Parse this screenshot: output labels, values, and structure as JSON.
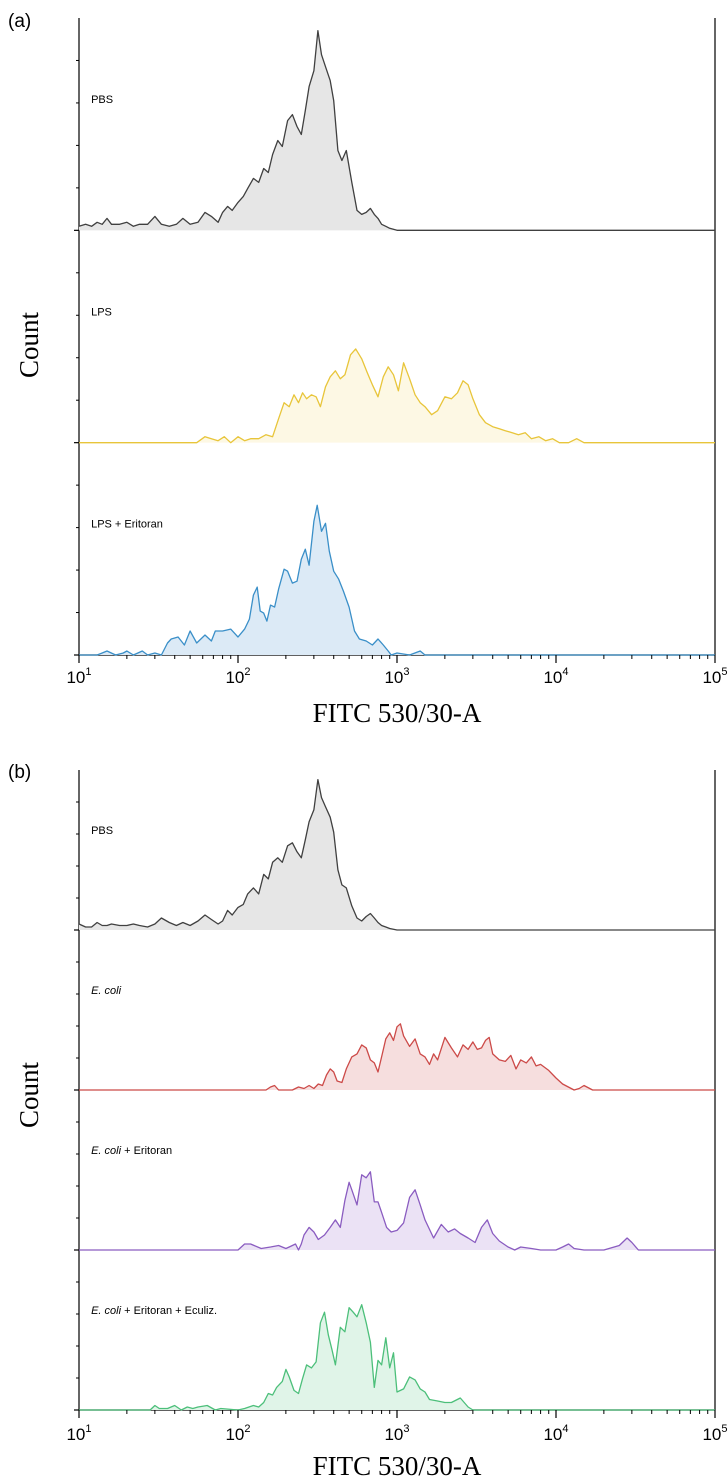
{
  "chart_data": [
    {
      "type": "area",
      "panel_label": "(a)",
      "xlabel": "FITC 530/30-A",
      "ylabel": "Count",
      "x_scale": "log",
      "xlim": [
        10,
        100000
      ],
      "x_ticks": [
        {
          "value": 10,
          "base": "10",
          "exp": "1"
        },
        {
          "value": 100,
          "base": "10",
          "exp": "2"
        },
        {
          "value": 1000,
          "base": "10",
          "exp": "3"
        },
        {
          "value": 10000,
          "base": "10",
          "exp": "4"
        },
        {
          "value": 100000,
          "base": "10",
          "exp": "5"
        }
      ],
      "grid": false,
      "series": [
        {
          "name": "PBS",
          "color": "#404040",
          "fill": "#e6e6e6",
          "x": [
            10,
            11,
            12,
            13,
            14,
            15,
            16,
            18,
            20,
            22,
            24,
            27,
            30,
            33,
            37,
            41,
            45,
            50,
            56,
            62,
            68,
            75,
            80,
            86,
            92,
            100,
            108,
            115,
            125,
            135,
            145,
            155,
            165,
            178,
            190,
            205,
            220,
            235,
            250,
            265,
            280,
            300,
            318,
            335,
            355,
            380,
            400,
            425,
            450,
            480,
            520,
            560,
            600,
            640,
            680,
            720,
            760,
            800,
            850,
            900,
            1000,
            2000,
            5000,
            10000,
            20000,
            50000,
            100000
          ],
          "y": [
            2,
            3,
            2,
            4,
            3,
            6,
            3,
            3,
            4,
            2,
            3,
            3,
            7,
            3,
            2,
            3,
            6,
            3,
            4,
            9,
            7,
            4,
            9,
            12,
            10,
            14,
            17,
            21,
            26,
            24,
            31,
            29,
            38,
            45,
            42,
            55,
            58,
            52,
            48,
            60,
            72,
            80,
            100,
            88,
            82,
            75,
            65,
            40,
            35,
            40,
            24,
            10,
            8,
            9,
            11,
            8,
            6,
            3,
            2,
            1,
            0,
            0,
            0,
            0,
            0,
            0,
            0
          ],
          "ymax": 100,
          "label_x": 0.019,
          "label_y": 0.6
        },
        {
          "name": "LPS",
          "color": "#e8c53a",
          "fill": "#fdf8e4",
          "x": [
            10,
            20,
            40,
            55,
            62,
            68,
            75,
            82,
            90,
            100,
            110,
            120,
            135,
            150,
            165,
            180,
            195,
            210,
            225,
            240,
            255,
            270,
            290,
            310,
            330,
            355,
            380,
            410,
            440,
            470,
            510,
            550,
            600,
            650,
            700,
            760,
            820,
            880,
            950,
            1020,
            1100,
            1200,
            1300,
            1400,
            1500,
            1650,
            1800,
            2000,
            2200,
            2400,
            2600,
            2800,
            3000,
            3300,
            3600,
            4000,
            4400,
            4800,
            5300,
            5800,
            6400,
            7000,
            7800,
            8600,
            9500,
            10500,
            12000,
            13500,
            15000,
            20000,
            50000,
            100000
          ],
          "y": [
            0,
            0,
            0,
            0,
            3,
            2,
            1,
            3,
            0,
            3,
            1,
            2,
            2,
            4,
            3,
            12,
            20,
            18,
            24,
            20,
            25,
            22,
            24,
            23,
            18,
            28,
            33,
            36,
            32,
            34,
            44,
            47,
            42,
            35,
            29,
            23,
            33,
            38,
            34,
            26,
            40,
            32,
            24,
            20,
            18,
            14,
            16,
            23,
            22,
            25,
            31,
            29,
            22,
            14,
            10,
            8,
            7,
            6,
            5,
            4,
            5,
            2,
            3,
            1,
            2,
            0,
            0,
            2,
            0,
            0,
            0,
            0
          ],
          "ymax": 100,
          "label_x": 0.019,
          "label_y": 0.6
        },
        {
          "name": "LPS + Eritoran",
          "color": "#3a8fc8",
          "fill": "#dceaf6",
          "x": [
            10,
            13,
            14,
            15,
            17,
            19,
            20,
            22,
            25,
            27,
            30,
            33,
            36,
            38,
            42,
            46,
            50,
            55,
            62,
            68,
            72,
            80,
            90,
            100,
            110,
            118,
            125,
            132,
            138,
            145,
            152,
            160,
            170,
            180,
            195,
            205,
            220,
            235,
            250,
            265,
            280,
            300,
            315,
            335,
            355,
            375,
            400,
            430,
            460,
            500,
            540,
            580,
            640,
            700,
            760,
            820,
            880,
            920,
            1000,
            1200,
            1400,
            1500,
            1600,
            2000,
            10000,
            100000
          ],
          "y": [
            0,
            0,
            1,
            2,
            0,
            1,
            2,
            0,
            2,
            0,
            1,
            0,
            6,
            8,
            9,
            5,
            12,
            6,
            10,
            7,
            12,
            12,
            13,
            9,
            13,
            18,
            30,
            34,
            22,
            21,
            17,
            25,
            24,
            33,
            43,
            42,
            36,
            37,
            48,
            53,
            45,
            67,
            75,
            62,
            66,
            52,
            42,
            38,
            32,
            24,
            12,
            8,
            7,
            5,
            8,
            5,
            2,
            0,
            1,
            0,
            2,
            0,
            0,
            0,
            0,
            0
          ],
          "ymax": 100,
          "label_x": 0.019,
          "label_y": 0.6
        }
      ]
    },
    {
      "type": "area",
      "panel_label": "(b)",
      "xlabel": "FITC 530/30-A",
      "ylabel": "Count",
      "x_scale": "log",
      "xlim": [
        10,
        100000
      ],
      "x_ticks": [
        {
          "value": 10,
          "base": "10",
          "exp": "1"
        },
        {
          "value": 100,
          "base": "10",
          "exp": "2"
        },
        {
          "value": 1000,
          "base": "10",
          "exp": "3"
        },
        {
          "value": 10000,
          "base": "10",
          "exp": "4"
        },
        {
          "value": 100000,
          "base": "10",
          "exp": "5"
        }
      ],
      "grid": false,
      "series": [
        {
          "name": "PBS",
          "color": "#404040",
          "fill": "#e6e6e6",
          "x": [
            10,
            11,
            12,
            13,
            14,
            15,
            16,
            18,
            20,
            22,
            24,
            27,
            30,
            33,
            37,
            41,
            45,
            50,
            56,
            62,
            68,
            75,
            80,
            86,
            92,
            100,
            108,
            115,
            125,
            135,
            145,
            155,
            165,
            178,
            190,
            205,
            220,
            235,
            250,
            265,
            280,
            300,
            318,
            335,
            355,
            380,
            400,
            425,
            450,
            480,
            520,
            560,
            600,
            640,
            680,
            720,
            760,
            800,
            850,
            900,
            1000,
            2000,
            5000,
            10000,
            20000,
            50000,
            100000
          ],
          "y": [
            4,
            2,
            2,
            5,
            3,
            3,
            4,
            3,
            3,
            4,
            3,
            2,
            4,
            8,
            5,
            3,
            5,
            3,
            6,
            10,
            7,
            4,
            6,
            13,
            10,
            15,
            17,
            24,
            28,
            24,
            37,
            34,
            45,
            48,
            45,
            56,
            58,
            52,
            48,
            60,
            72,
            80,
            100,
            88,
            82,
            75,
            65,
            40,
            30,
            28,
            16,
            8,
            6,
            9,
            11,
            8,
            5,
            3,
            2,
            1,
            0,
            0,
            0,
            0,
            0,
            0,
            0
          ],
          "ymax": 100,
          "label_x": 0.019,
          "label_y": 0.6
        },
        {
          "name": "E. coli",
          "name_parts": [
            "E. coli",
            ""
          ],
          "color": "#cc4a48",
          "fill": "#f6dede",
          "x": [
            10,
            150,
            160,
            170,
            180,
            200,
            220,
            240,
            260,
            280,
            300,
            320,
            340,
            360,
            380,
            400,
            420,
            450,
            480,
            520,
            560,
            600,
            640,
            680,
            720,
            760,
            800,
            850,
            900,
            950,
            1000,
            1050,
            1100,
            1200,
            1300,
            1400,
            1500,
            1600,
            1700,
            1800,
            2000,
            2200,
            2400,
            2600,
            2800,
            3000,
            3200,
            3400,
            3600,
            3800,
            4000,
            4400,
            4800,
            5200,
            5600,
            6000,
            6500,
            7000,
            7500,
            8000,
            9000,
            10000,
            11000,
            13000,
            14000,
            15000,
            17000,
            20000,
            50000,
            100000
          ],
          "y": [
            0,
            0,
            2,
            3,
            0,
            0,
            0,
            2,
            1,
            3,
            1,
            4,
            3,
            10,
            14,
            12,
            6,
            5,
            14,
            22,
            24,
            30,
            28,
            20,
            18,
            12,
            22,
            34,
            38,
            33,
            42,
            44,
            36,
            29,
            34,
            24,
            22,
            17,
            24,
            20,
            35,
            28,
            22,
            30,
            27,
            32,
            27,
            28,
            33,
            35,
            24,
            20,
            19,
            23,
            14,
            20,
            18,
            22,
            16,
            17,
            13,
            8,
            4,
            0,
            1,
            3,
            0,
            0,
            0,
            0
          ],
          "ymax": 100,
          "label_x": 0.019,
          "label_y": 0.6
        },
        {
          "name": "E. coli + Eritoran",
          "name_parts": [
            "E. coli",
            " + Eritoran"
          ],
          "color": "#8a5cc0",
          "fill": "#ebe2f5",
          "x": [
            10,
            100,
            110,
            120,
            140,
            160,
            180,
            200,
            210,
            230,
            240,
            250,
            260,
            280,
            300,
            320,
            350,
            380,
            410,
            440,
            470,
            500,
            520,
            560,
            600,
            640,
            680,
            720,
            760,
            800,
            860,
            920,
            1000,
            1100,
            1200,
            1300,
            1400,
            1500,
            1700,
            1900,
            2100,
            2300,
            2500,
            2800,
            3100,
            3400,
            3700,
            4000,
            4400,
            5000,
            5500,
            6000,
            7000,
            8000,
            10000,
            11000,
            12000,
            13000,
            15000,
            20000,
            25000,
            28000,
            30000,
            33000,
            40000,
            100000
          ],
          "y": [
            0,
            0,
            4,
            4,
            1,
            2,
            3,
            1,
            2,
            4,
            0,
            4,
            10,
            15,
            12,
            7,
            10,
            15,
            20,
            15,
            33,
            45,
            40,
            30,
            50,
            48,
            52,
            32,
            32,
            25,
            15,
            12,
            13,
            18,
            35,
            40,
            30,
            20,
            8,
            17,
            12,
            14,
            11,
            8,
            5,
            15,
            20,
            11,
            6,
            2,
            0,
            2,
            1,
            0,
            0,
            2,
            4,
            1,
            0,
            0,
            3,
            8,
            5,
            0,
            0,
            0
          ],
          "ymax": 100,
          "label_x": 0.019,
          "label_y": 0.6
        },
        {
          "name": "E. coli + Eritoran + Eculiz.",
          "name_parts": [
            "E. coli",
            " + Eritoran + Eculiz."
          ],
          "color": "#4cbf7a",
          "fill": "#e0f4e8",
          "x": [
            10,
            28,
            30,
            32,
            36,
            40,
            44,
            48,
            52,
            56,
            64,
            72,
            78,
            100,
            110,
            125,
            135,
            145,
            155,
            165,
            175,
            190,
            200,
            210,
            225,
            240,
            255,
            270,
            290,
            310,
            330,
            350,
            370,
            390,
            410,
            440,
            470,
            500,
            530,
            560,
            600,
            640,
            680,
            720,
            760,
            800,
            850,
            900,
            950,
            1000,
            1100,
            1200,
            1300,
            1400,
            1500,
            1600,
            1800,
            2000,
            2200,
            2500,
            2800,
            3000,
            3500,
            100000
          ],
          "y": [
            0,
            0,
            3,
            1,
            1,
            3,
            0,
            2,
            1,
            2,
            3,
            0,
            1,
            0,
            1,
            3,
            2,
            5,
            11,
            10,
            15,
            19,
            27,
            22,
            13,
            11,
            21,
            30,
            28,
            32,
            58,
            65,
            50,
            40,
            30,
            55,
            52,
            68,
            65,
            62,
            70,
            58,
            45,
            15,
            33,
            30,
            48,
            28,
            38,
            12,
            14,
            22,
            20,
            14,
            12,
            7,
            6,
            5,
            5,
            8,
            2,
            0,
            0,
            0
          ],
          "ymax": 100,
          "label_x": 0.019,
          "label_y": 0.6
        }
      ]
    }
  ]
}
